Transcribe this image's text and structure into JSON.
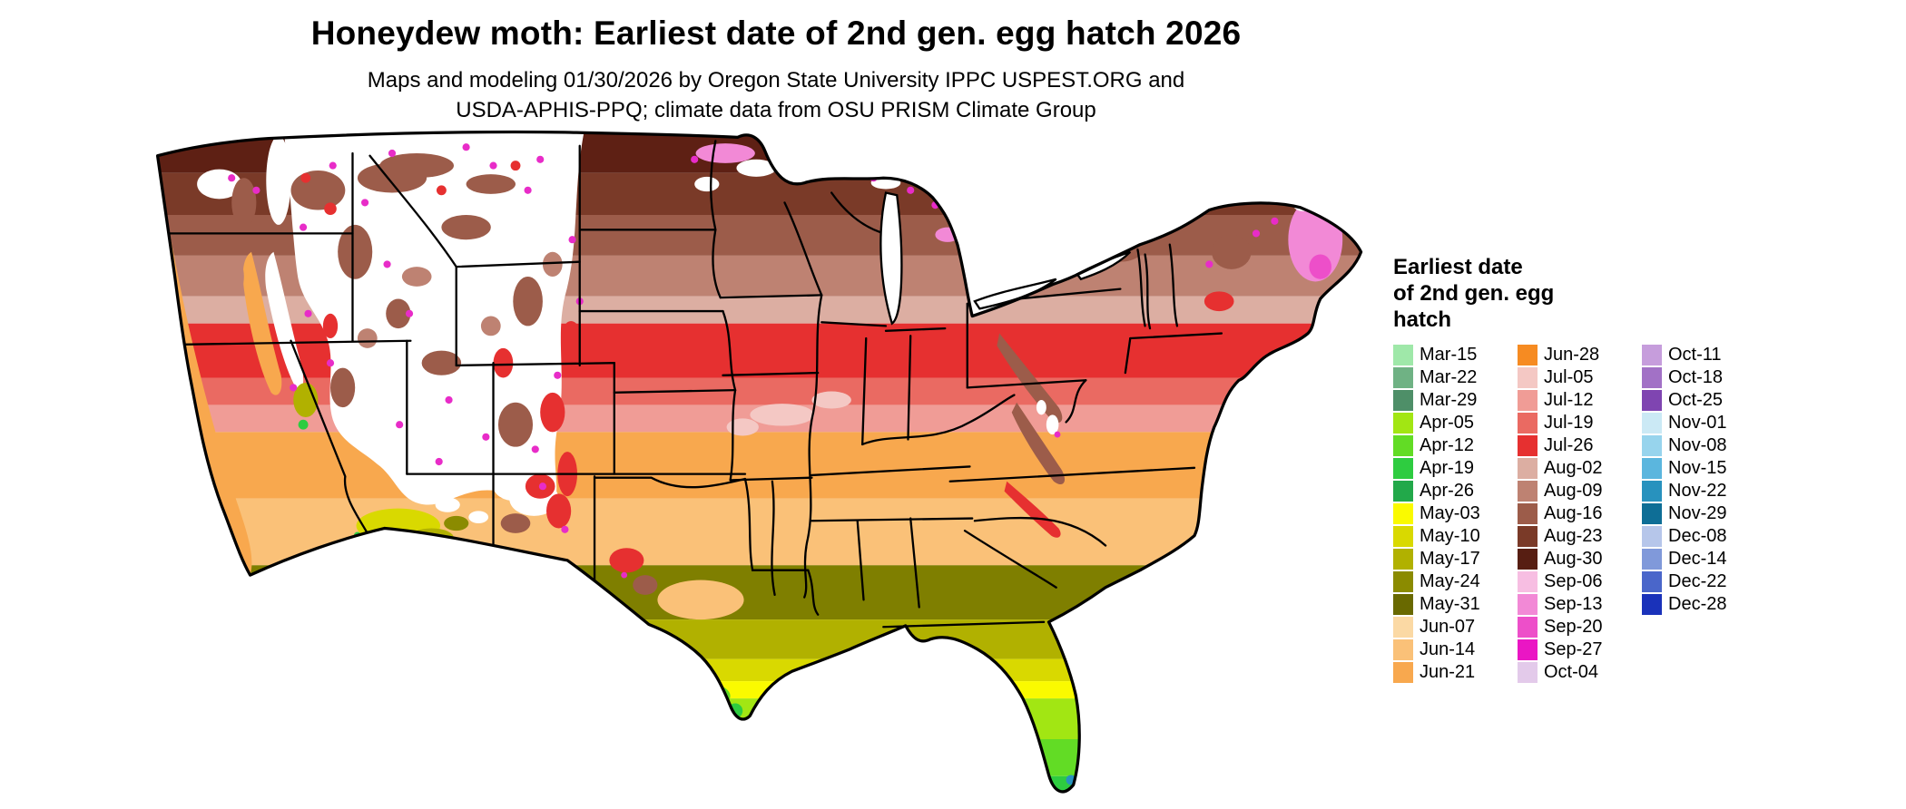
{
  "title": "Honeydew moth: Earliest date of 2nd gen. egg hatch 2026",
  "subtitle_line1": "Maps and modeling 01/30/2026 by Oregon State University IPPC USPEST.ORG and",
  "subtitle_line2": "USDA-APHIS-PPQ; climate data from OSU PRISM Climate Group",
  "legend": {
    "title_lines": [
      "Earliest date",
      "of 2nd gen. egg",
      "hatch"
    ],
    "columns": [
      {
        "items": [
          {
            "label": "Mar-15",
            "color": "#9FE8A9"
          },
          {
            "label": "Mar-22",
            "color": "#6FB284"
          },
          {
            "label": "Mar-29",
            "color": "#4E8F68"
          },
          {
            "label": "Apr-05",
            "color": "#A2E613"
          },
          {
            "label": "Apr-12",
            "color": "#62DC25"
          },
          {
            "label": "Apr-19",
            "color": "#2ECC40"
          },
          {
            "label": "Apr-26",
            "color": "#22A94A"
          },
          {
            "label": "May-03",
            "color": "#FAFA00"
          },
          {
            "label": "May-10",
            "color": "#D9D900"
          },
          {
            "label": "May-17",
            "color": "#B1B100"
          },
          {
            "label": "May-24",
            "color": "#8B8B00"
          },
          {
            "label": "May-31",
            "color": "#696900"
          },
          {
            "label": "Jun-07",
            "color": "#FBD9A4"
          },
          {
            "label": "Jun-14",
            "color": "#FAC178"
          },
          {
            "label": "Jun-21",
            "color": "#F8A84E"
          }
        ]
      },
      {
        "items": [
          {
            "label": "Jun-28",
            "color": "#F68B22"
          },
          {
            "label": "Jul-05",
            "color": "#F4C8C4"
          },
          {
            "label": "Jul-12",
            "color": "#F09C96"
          },
          {
            "label": "Jul-19",
            "color": "#EA6A62"
          },
          {
            "label": "Jul-26",
            "color": "#E63030"
          },
          {
            "label": "Aug-02",
            "color": "#DCAEA2"
          },
          {
            "label": "Aug-09",
            "color": "#BE8272"
          },
          {
            "label": "Aug-16",
            "color": "#9C5C4A"
          },
          {
            "label": "Aug-23",
            "color": "#7A3A28"
          },
          {
            "label": "Aug-30",
            "color": "#571E12"
          },
          {
            "label": "Sep-06",
            "color": "#F7BEE2"
          },
          {
            "label": "Sep-13",
            "color": "#F289D6"
          },
          {
            "label": "Sep-20",
            "color": "#ED4FC9"
          },
          {
            "label": "Sep-27",
            "color": "#EA16C4"
          },
          {
            "label": "Oct-04",
            "color": "#E3CAEA"
          }
        ]
      },
      {
        "items": [
          {
            "label": "Oct-11",
            "color": "#C69DDC"
          },
          {
            "label": "Oct-18",
            "color": "#A271C6"
          },
          {
            "label": "Oct-25",
            "color": "#7F45B1"
          },
          {
            "label": "Nov-01",
            "color": "#CBE9F5"
          },
          {
            "label": "Nov-08",
            "color": "#97D4ED"
          },
          {
            "label": "Nov-15",
            "color": "#5BB6DE"
          },
          {
            "label": "Nov-22",
            "color": "#2892BE"
          },
          {
            "label": "Nov-29",
            "color": "#0E6E96"
          },
          {
            "label": "Dec-08",
            "color": "#B6C6EA"
          },
          {
            "label": "Dec-14",
            "color": "#8099DA"
          },
          {
            "label": "Dec-22",
            "color": "#4A66CA"
          },
          {
            "label": "Dec-28",
            "color": "#1A32BA"
          }
        ]
      }
    ]
  }
}
